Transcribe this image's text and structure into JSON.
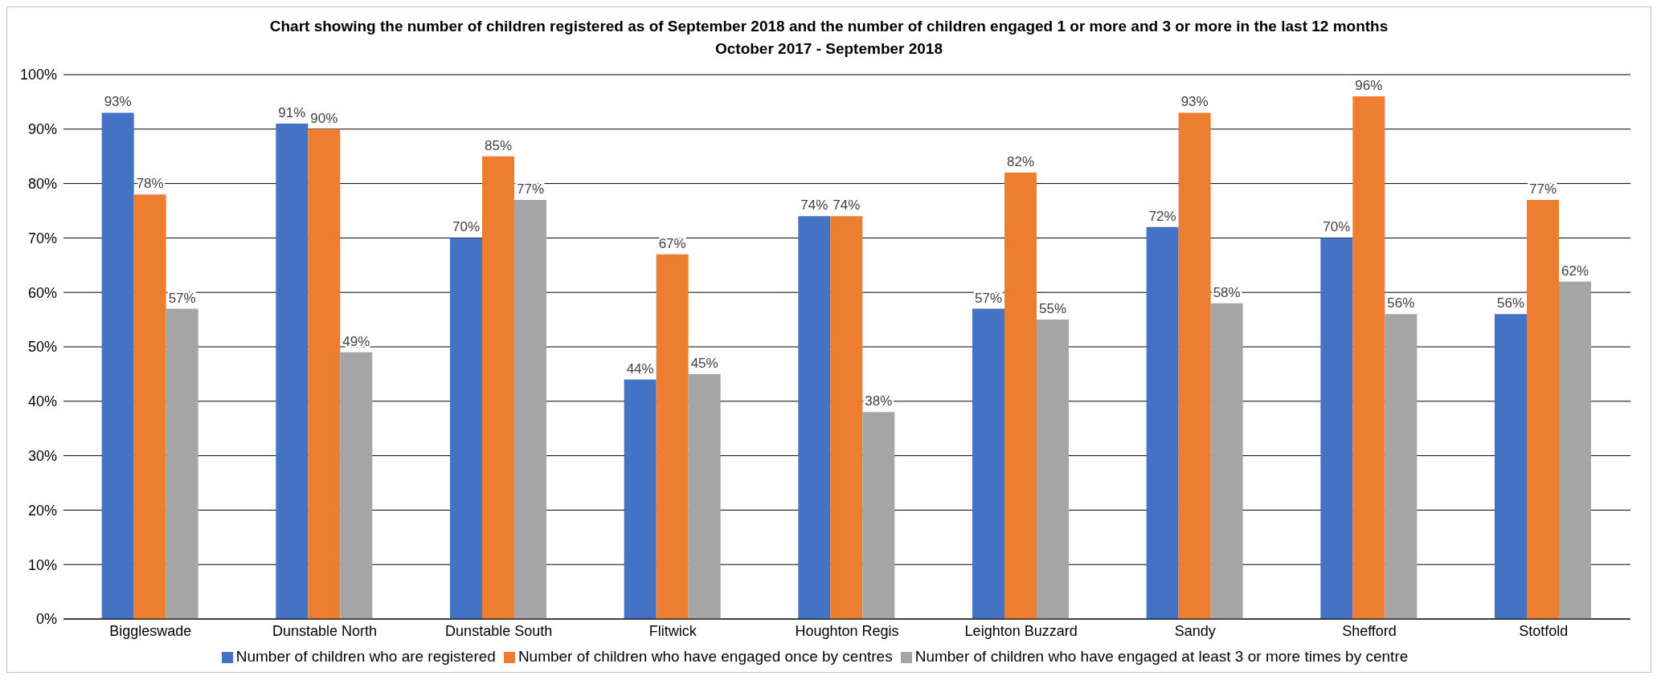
{
  "chart_data": {
    "type": "bar",
    "title": "Chart showing the number of children registered as of September 2018 and the number of children engaged 1 or more and 3 or more in the last 12 months October 2017 - September 2018",
    "categories": [
      "Biggleswade",
      "Dunstable North",
      "Dunstable South",
      "Flitwick",
      "Houghton Regis",
      "Leighton Buzzard",
      "Sandy",
      "Shefford",
      "Stotfold"
    ],
    "series": [
      {
        "name": "Number of children who are registered",
        "color": "#4472c4",
        "values": [
          93,
          91,
          70,
          44,
          74,
          57,
          72,
          70,
          56
        ],
        "value_labels": [
          "93%",
          "91%",
          "70%",
          "44%",
          "74%",
          "57%",
          "72%",
          "70%",
          "56%"
        ]
      },
      {
        "name": "Number of children who have engaged once by centres",
        "color": "#ed7d31",
        "values": [
          78,
          90,
          85,
          67,
          74,
          82,
          93,
          96,
          77
        ],
        "value_labels": [
          "78%",
          "90%",
          "85%",
          "67%",
          "74%",
          "82%",
          "93%",
          "96%",
          "77%"
        ]
      },
      {
        "name": "Number of children who have engaged at least 3 or more times by centre",
        "color": "#a5a5a5",
        "values": [
          57,
          49,
          77,
          45,
          38,
          55,
          58,
          56,
          62
        ],
        "value_labels": [
          "57%",
          "49%",
          "77%",
          "45%",
          "38%",
          "55%",
          "58%",
          "56%",
          "62%"
        ]
      }
    ],
    "ylim": [
      0,
      100
    ],
    "yticks": [
      {
        "value": 0,
        "label": "0%"
      },
      {
        "value": 10,
        "label": "10%"
      },
      {
        "value": 20,
        "label": "20%"
      },
      {
        "value": 30,
        "label": "30%"
      },
      {
        "value": 40,
        "label": "40%"
      },
      {
        "value": 50,
        "label": "50%"
      },
      {
        "value": 60,
        "label": "60%"
      },
      {
        "value": 70,
        "label": "70%"
      },
      {
        "value": 80,
        "label": "80%"
      },
      {
        "value": 90,
        "label": "90%"
      },
      {
        "value": 100,
        "label": "100%"
      }
    ],
    "grid": "y",
    "legend": "bottom"
  }
}
